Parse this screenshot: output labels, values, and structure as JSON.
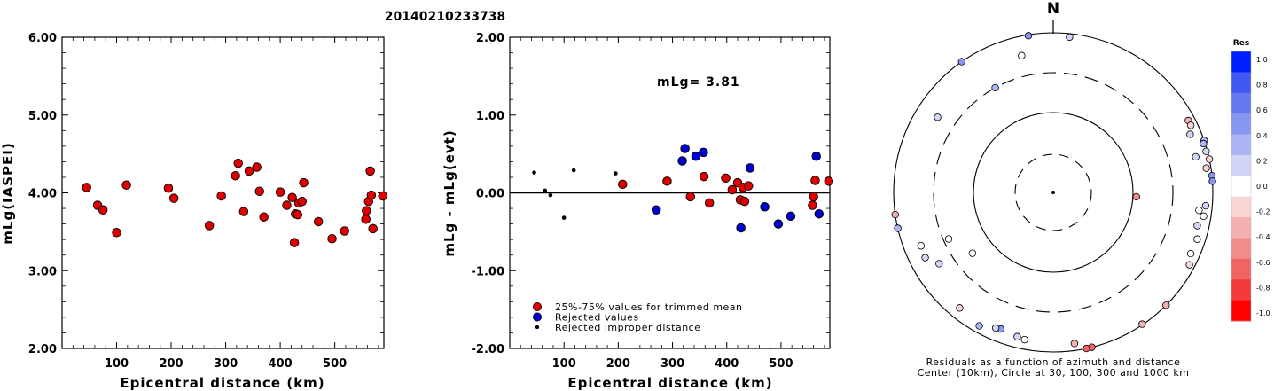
{
  "title": "20140210233738",
  "chart_data": [
    {
      "type": "scatter",
      "title": "",
      "xlabel": "Epicentral distance (km)",
      "ylabel": "mLg(IASPEI)",
      "xlim": [
        0,
        590
      ],
      "ylim": [
        2.0,
        6.0
      ],
      "xticks": [
        "100",
        "200",
        "300",
        "400",
        "500"
      ],
      "yticks": [
        "2.00",
        "3.00",
        "4.00",
        "5.00",
        "6.00"
      ],
      "series": [
        {
          "marker": "red-circle",
          "color": "#dd0000",
          "points": [
            [
              45,
              4.07
            ],
            [
              65,
              3.84
            ],
            [
              75,
              3.78
            ],
            [
              100,
              3.49
            ],
            [
              118,
              4.1
            ],
            [
              195,
              4.06
            ],
            [
              205,
              3.93
            ],
            [
              270,
              3.58
            ],
            [
              292,
              3.96
            ],
            [
              318,
              4.22
            ],
            [
              323,
              4.38
            ],
            [
              333,
              3.76
            ],
            [
              343,
              4.28
            ],
            [
              357,
              4.33
            ],
            [
              362,
              4.02
            ],
            [
              370,
              3.69
            ],
            [
              400,
              4.01
            ],
            [
              412,
              3.84
            ],
            [
              422,
              3.94
            ],
            [
              426,
              3.36
            ],
            [
              428,
              3.73
            ],
            [
              432,
              3.72
            ],
            [
              434,
              3.87
            ],
            [
              440,
              3.89
            ],
            [
              443,
              4.13
            ],
            [
              470,
              3.63
            ],
            [
              495,
              3.41
            ],
            [
              518,
              3.51
            ],
            [
              557,
              3.66
            ],
            [
              558,
              3.77
            ],
            [
              562,
              3.89
            ],
            [
              565,
              4.28
            ],
            [
              567,
              3.97
            ],
            [
              570,
              3.54
            ],
            [
              588,
              3.96
            ]
          ]
        }
      ]
    },
    {
      "type": "scatter",
      "title": "",
      "xlabel": "Epicentral distance (km)",
      "ylabel": "mLg - mLg(evt)",
      "xlim": [
        0,
        590
      ],
      "ylim": [
        -2.0,
        2.0
      ],
      "xticks": [
        "100",
        "200",
        "300",
        "400",
        "500"
      ],
      "yticks": [
        "-2.00",
        "-1.00",
        "0.00",
        "1.00",
        "2.00"
      ],
      "annotation": "mLg= 3.81",
      "series": [
        {
          "name": "25%-75% values for trimmed mean",
          "marker": "red-circle",
          "color": "#dd0000",
          "points": [
            [
              208,
              0.11
            ],
            [
              290,
              0.15
            ],
            [
              333,
              -0.05
            ],
            [
              358,
              0.21
            ],
            [
              368,
              -0.13
            ],
            [
              398,
              0.19
            ],
            [
              410,
              0.04
            ],
            [
              420,
              0.13
            ],
            [
              425,
              -0.09
            ],
            [
              430,
              0.07
            ],
            [
              433,
              -0.11
            ],
            [
              440,
              0.09
            ],
            [
              558,
              -0.16
            ],
            [
              560,
              -0.05
            ],
            [
              563,
              0.16
            ],
            [
              588,
              0.15
            ]
          ]
        },
        {
          "name": "Rejected values",
          "marker": "blue-circle",
          "color": "#0000cc",
          "points": [
            [
              270,
              -0.22
            ],
            [
              318,
              0.41
            ],
            [
              323,
              0.57
            ],
            [
              343,
              0.47
            ],
            [
              357,
              0.52
            ],
            [
              426,
              -0.45
            ],
            [
              443,
              0.32
            ],
            [
              470,
              -0.18
            ],
            [
              495,
              -0.4
            ],
            [
              518,
              -0.3
            ],
            [
              565,
              0.47
            ],
            [
              570,
              -0.27
            ]
          ]
        },
        {
          "name": "Rejected improper distance",
          "marker": "black-dot",
          "color": "#000000",
          "points": [
            [
              45,
              0.26
            ],
            [
              65,
              0.03
            ],
            [
              75,
              -0.03
            ],
            [
              100,
              -0.32
            ],
            [
              118,
              0.29
            ],
            [
              195,
              0.25
            ]
          ]
        }
      ]
    },
    {
      "type": "scatter",
      "subtype": "polar",
      "north_label": "N",
      "caption_line1": "Residuals as a function of azimuth and distance",
      "caption_line2": "Center (10km), Circle at 30, 100, 300 and 1000 km",
      "rings_km": [
        30,
        100,
        300,
        1000
      ],
      "colorbar": {
        "title": "Res",
        "ticks": [
          "1.0",
          "0.8",
          "0.6",
          "0.4",
          "0.2",
          "0.0",
          "-0.2",
          "-0.4",
          "-0.6",
          "-0.8",
          "-1.0"
        ],
        "colors": [
          "#0020ff",
          "#4159f3",
          "#6478f0",
          "#8796f1",
          "#acb6f4",
          "#d1d6f8",
          "#ffffff",
          "#f8d4d4",
          "#f3b0b0",
          "#f08c8c",
          "#f06464",
          "#f43a3a",
          "#ff0000"
        ]
      },
      "points": [
        {
          "azimuth": 351,
          "distance_km": 970,
          "residual": 0.45
        },
        {
          "azimuth": 6,
          "distance_km": 900,
          "residual": 0.25
        },
        {
          "azimuth": 347,
          "distance_km": 560,
          "residual": 0.0
        },
        {
          "azimuth": 325,
          "distance_km": 1000,
          "residual": 0.45
        },
        {
          "azimuth": 331,
          "distance_km": 300,
          "residual": 0.35
        },
        {
          "azimuth": 303,
          "distance_km": 520,
          "residual": 0.2
        },
        {
          "azimuth": 76,
          "distance_km": 680,
          "residual": 0.1
        },
        {
          "azimuth": 93,
          "distance_km": 110,
          "residual": -0.45
        },
        {
          "azimuth": 62,
          "distance_km": 820,
          "residual": -0.3
        },
        {
          "azimuth": 64,
          "distance_km": 820,
          "residual": -0.2
        },
        {
          "azimuth": 67,
          "distance_km": 720,
          "residual": 0.1
        },
        {
          "azimuth": 71,
          "distance_km": 1000,
          "residual": 0.35
        },
        {
          "azimuth": 72,
          "distance_km": 950,
          "residual": 0.3
        },
        {
          "azimuth": 75,
          "distance_km": 960,
          "residual": 0.2
        },
        {
          "azimuth": 78,
          "distance_km": 1000,
          "residual": -0.15
        },
        {
          "azimuth": 81,
          "distance_km": 870,
          "residual": -0.15
        },
        {
          "azimuth": 84,
          "distance_km": 1000,
          "residual": 0.5
        },
        {
          "azimuth": 86,
          "distance_km": 1000,
          "residual": 0.5
        },
        {
          "azimuth": 95,
          "distance_km": 820,
          "residual": 0.1
        },
        {
          "azimuth": 97,
          "distance_km": 680,
          "residual": 0.0
        },
        {
          "azimuth": 99,
          "distance_km": 800,
          "residual": 0.0
        },
        {
          "azimuth": 103,
          "distance_km": 700,
          "residual": 0.15
        },
        {
          "azimuth": 108,
          "distance_km": 780,
          "residual": 0.0
        },
        {
          "azimuth": 114,
          "distance_km": 760,
          "residual": 0.0
        },
        {
          "azimuth": 118,
          "distance_km": 850,
          "residual": -0.2
        },
        {
          "azimuth": 135,
          "distance_km": 1000,
          "residual": -0.4
        },
        {
          "azimuth": 146,
          "distance_km": 980,
          "residual": -0.4
        },
        {
          "azimuth": 166,
          "distance_km": 1000,
          "residual": -0.65
        },
        {
          "azimuth": 168,
          "distance_km": 1000,
          "residual": -0.65
        },
        {
          "azimuth": 172,
          "distance_km": 810,
          "residual": -0.35
        },
        {
          "azimuth": 191,
          "distance_km": 750,
          "residual": 0.0
        },
        {
          "azimuth": 201,
          "distance_km": 670,
          "residual": 0.45
        },
        {
          "azimuth": 203,
          "distance_km": 690,
          "residual": 0.2
        },
        {
          "azimuth": 209,
          "distance_km": 810,
          "residual": 0.4
        },
        {
          "azimuth": 219,
          "distance_km": 720,
          "residual": -0.15
        },
        {
          "azimuth": 233,
          "distance_km": 180,
          "residual": 0.0
        },
        {
          "azimuth": 238,
          "distance_km": 470,
          "residual": 0.1
        },
        {
          "azimuth": 243,
          "distance_km": 620,
          "residual": 0.2
        },
        {
          "azimuth": 248,
          "distance_km": 600,
          "residual": 0.0
        },
        {
          "azimuth": 246,
          "distance_km": 260,
          "residual": 0.0
        },
        {
          "azimuth": 257,
          "distance_km": 1000,
          "residual": 0.3
        },
        {
          "azimuth": 262,
          "distance_km": 1000,
          "residual": -0.3
        },
        {
          "azimuth": 194,
          "distance_km": 720,
          "residual": 0.1
        }
      ]
    }
  ]
}
